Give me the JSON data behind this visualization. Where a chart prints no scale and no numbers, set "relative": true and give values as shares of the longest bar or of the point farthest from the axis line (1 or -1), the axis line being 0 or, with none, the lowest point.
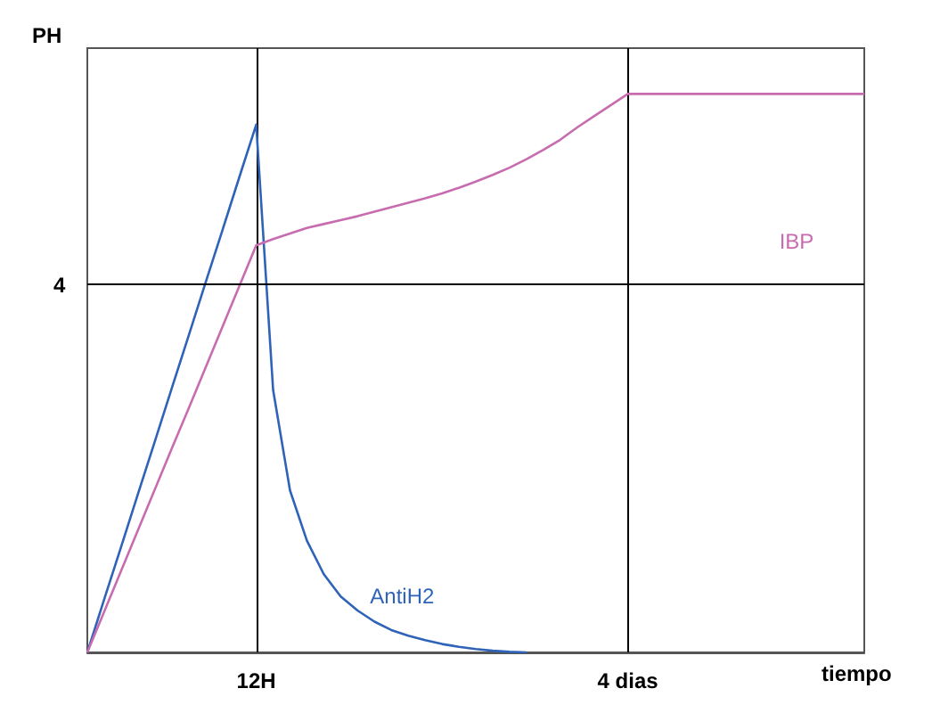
{
  "chart_data": {
    "type": "line",
    "relative": true,
    "xlabel": "tiempo",
    "ylabel": "PH",
    "grid": "x",
    "legend": false,
    "categories": [
      null,
      null,
      null,
      null,
      null,
      null,
      null,
      null,
      null,
      null,
      "12H",
      null,
      null,
      null,
      null,
      null,
      null,
      null,
      null,
      null,
      null,
      null,
      null,
      null,
      null,
      null,
      null,
      null,
      null,
      null,
      null,
      null,
      "4 dias",
      null,
      null,
      null,
      null,
      null,
      null,
      null,
      null,
      null,
      null,
      null,
      null,
      null,
      null
    ],
    "ref_lines": [
      {
        "axis": "y",
        "value": 0.655,
        "color": "#000000"
      }
    ],
    "annotations": [
      "4"
    ],
    "series": [
      {
        "name": "AntiH2",
        "color": "#2f63b8",
        "values": [
          0,
          0.095,
          0.189,
          0.284,
          0.378,
          0.473,
          0.567,
          0.662,
          0.756,
          0.851,
          0.945,
          0.47,
          0.29,
          0.2,
          0.14,
          0.1,
          0.075,
          0.055,
          0.04,
          0.03,
          0.022,
          0.015,
          0.01,
          0.006,
          0.003,
          0.001,
          0,
          null,
          null,
          null,
          null,
          null,
          null,
          null,
          null,
          null,
          null,
          null,
          null,
          null,
          null,
          null,
          null,
          null,
          null,
          null,
          null
        ]
      },
      {
        "name": "IBP",
        "color": "#c86cb0",
        "values": [
          0,
          0.073,
          0.146,
          0.219,
          0.292,
          0.365,
          0.437,
          0.51,
          0.583,
          0.656,
          0.729,
          0.74,
          0.75,
          0.76,
          0.767,
          0.774,
          0.781,
          0.789,
          0.797,
          0.805,
          0.813,
          0.822,
          0.832,
          0.843,
          0.855,
          0.868,
          0.883,
          0.9,
          0.918,
          0.94,
          0.96,
          0.98,
          1.0,
          1.0,
          1.0,
          1.0,
          1.0,
          1.0,
          1.0,
          1.0,
          1.0,
          1.0,
          1.0,
          1.0,
          1.0,
          1.0,
          1.0
        ]
      }
    ]
  }
}
